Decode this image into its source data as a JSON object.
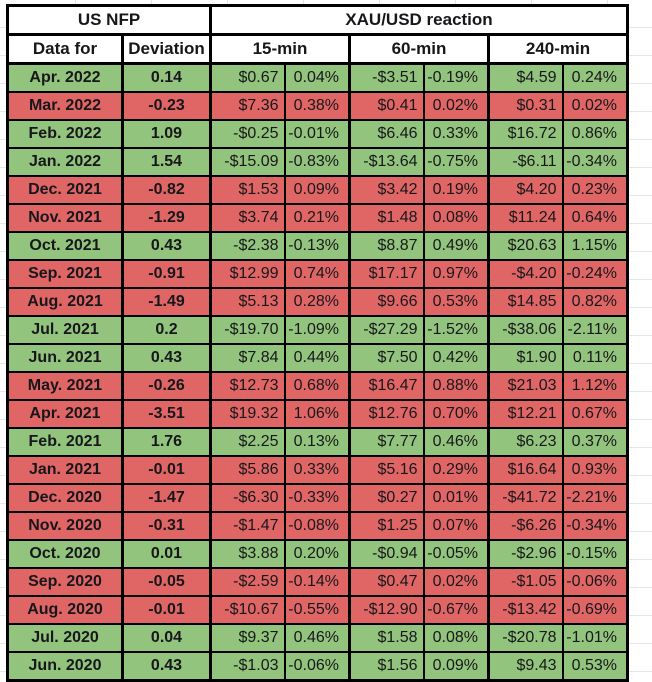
{
  "colors": {
    "green": "#93c47d",
    "red": "#e06666",
    "border": "#000000",
    "header_bg": "#ffffff",
    "text": "#17171b"
  },
  "table": {
    "header": {
      "group_left": "US NFP",
      "group_right": "XAU/USD reaction",
      "col_data_for": "Data for",
      "col_deviation": "Deviation",
      "col_15min": "15-min",
      "col_60min": "60-min",
      "col_240min": "240-min"
    },
    "rows": [
      {
        "month": "Apr. 2022",
        "deviation": "0.14",
        "tone": "green",
        "usd_15": "$0.67",
        "pct_15": "0.04%",
        "usd_60": "-$3.51",
        "pct_60": "-0.19%",
        "usd_240": "$4.59",
        "pct_240": "0.24%"
      },
      {
        "month": "Mar. 2022",
        "deviation": "-0.23",
        "tone": "red",
        "usd_15": "$7.36",
        "pct_15": "0.38%",
        "usd_60": "$0.41",
        "pct_60": "0.02%",
        "usd_240": "$0.31",
        "pct_240": "0.02%"
      },
      {
        "month": "Feb. 2022",
        "deviation": "1.09",
        "tone": "green",
        "usd_15": "-$0.25",
        "pct_15": "-0.01%",
        "usd_60": "$6.46",
        "pct_60": "0.33%",
        "usd_240": "$16.72",
        "pct_240": "0.86%"
      },
      {
        "month": "Jan. 2022",
        "deviation": "1.54",
        "tone": "green",
        "usd_15": "-$15.09",
        "pct_15": "-0.83%",
        "usd_60": "-$13.64",
        "pct_60": "-0.75%",
        "usd_240": "-$6.11",
        "pct_240": "-0.34%"
      },
      {
        "month": "Dec. 2021",
        "deviation": "-0.82",
        "tone": "red",
        "usd_15": "$1.53",
        "pct_15": "0.09%",
        "usd_60": "$3.42",
        "pct_60": "0.19%",
        "usd_240": "$4.20",
        "pct_240": "0.23%"
      },
      {
        "month": "Nov. 2021",
        "deviation": "-1.29",
        "tone": "red",
        "usd_15": "$3.74",
        "pct_15": "0.21%",
        "usd_60": "$1.48",
        "pct_60": "0.08%",
        "usd_240": "$11.24",
        "pct_240": "0.64%"
      },
      {
        "month": "Oct. 2021",
        "deviation": "0.43",
        "tone": "green",
        "usd_15": "-$2.38",
        "pct_15": "-0.13%",
        "usd_60": "$8.87",
        "pct_60": "0.49%",
        "usd_240": "$20.63",
        "pct_240": "1.15%"
      },
      {
        "month": "Sep. 2021",
        "deviation": "-0.91",
        "tone": "red",
        "usd_15": "$12.99",
        "pct_15": "0.74%",
        "usd_60": "$17.17",
        "pct_60": "0.97%",
        "usd_240": "-$4.20",
        "pct_240": "-0.24%"
      },
      {
        "month": "Aug. 2021",
        "deviation": "-1.49",
        "tone": "red",
        "usd_15": "$5.13",
        "pct_15": "0.28%",
        "usd_60": "$9.66",
        "pct_60": "0.53%",
        "usd_240": "$14.85",
        "pct_240": "0.82%"
      },
      {
        "month": "Jul. 2021",
        "deviation": "0.2",
        "tone": "green",
        "usd_15": "-$19.70",
        "pct_15": "-1.09%",
        "usd_60": "-$27.29",
        "pct_60": "-1.52%",
        "usd_240": "-$38.06",
        "pct_240": "-2.11%"
      },
      {
        "month": "Jun. 2021",
        "deviation": "0.43",
        "tone": "green",
        "usd_15": "$7.84",
        "pct_15": "0.44%",
        "usd_60": "$7.50",
        "pct_60": "0.42%",
        "usd_240": "$1.90",
        "pct_240": "0.11%"
      },
      {
        "month": "May. 2021",
        "deviation": "-0.26",
        "tone": "red",
        "usd_15": "$12.73",
        "pct_15": "0.68%",
        "usd_60": "$16.47",
        "pct_60": "0.88%",
        "usd_240": "$21.03",
        "pct_240": "1.12%"
      },
      {
        "month": "Apr. 2021",
        "deviation": "-3.51",
        "tone": "red",
        "usd_15": "$19.32",
        "pct_15": "1.06%",
        "usd_60": "$12.76",
        "pct_60": "0.70%",
        "usd_240": "$12.21",
        "pct_240": "0.67%"
      },
      {
        "month": "Feb. 2021",
        "deviation": "1.76",
        "tone": "green",
        "usd_15": "$2.25",
        "pct_15": "0.13%",
        "usd_60": "$7.77",
        "pct_60": "0.46%",
        "usd_240": "$6.23",
        "pct_240": "0.37%"
      },
      {
        "month": "Jan. 2021",
        "deviation": "-0.01",
        "tone": "red",
        "usd_15": "$5.86",
        "pct_15": "0.33%",
        "usd_60": "$5.16",
        "pct_60": "0.29%",
        "usd_240": "$16.64",
        "pct_240": "0.93%"
      },
      {
        "month": "Dec. 2020",
        "deviation": "-1.47",
        "tone": "red",
        "usd_15": "-$6.30",
        "pct_15": "-0.33%",
        "usd_60": "$0.27",
        "pct_60": "0.01%",
        "usd_240": "-$41.72",
        "pct_240": "-2.21%"
      },
      {
        "month": "Nov. 2020",
        "deviation": "-0.31",
        "tone": "red",
        "usd_15": "-$1.47",
        "pct_15": "-0.08%",
        "usd_60": "$1.25",
        "pct_60": "0.07%",
        "usd_240": "-$6.26",
        "pct_240": "-0.34%"
      },
      {
        "month": "Oct. 2020",
        "deviation": "0.01",
        "tone": "green",
        "usd_15": "$3.88",
        "pct_15": "0.20%",
        "usd_60": "-$0.94",
        "pct_60": "-0.05%",
        "usd_240": "-$2.96",
        "pct_240": "-0.15%"
      },
      {
        "month": "Sep. 2020",
        "deviation": "-0.05",
        "tone": "red",
        "usd_15": "-$2.59",
        "pct_15": "-0.14%",
        "usd_60": "$0.47",
        "pct_60": "0.02%",
        "usd_240": "-$1.05",
        "pct_240": "-0.06%"
      },
      {
        "month": "Aug. 2020",
        "deviation": "-0.01",
        "tone": "red",
        "usd_15": "-$10.67",
        "pct_15": "-0.55%",
        "usd_60": "-$12.90",
        "pct_60": "-0.67%",
        "usd_240": "-$13.42",
        "pct_240": "-0.69%"
      },
      {
        "month": "Jul. 2020",
        "deviation": "0.04",
        "tone": "green",
        "usd_15": "$9.37",
        "pct_15": "0.46%",
        "usd_60": "$1.58",
        "pct_60": "0.08%",
        "usd_240": "-$20.78",
        "pct_240": "-1.01%"
      },
      {
        "month": "Jun. 2020",
        "deviation": "0.43",
        "tone": "green",
        "usd_15": "-$1.03",
        "pct_15": "-0.06%",
        "usd_60": "$1.56",
        "pct_60": "0.09%",
        "usd_240": "$9.43",
        "pct_240": "0.53%"
      }
    ]
  }
}
